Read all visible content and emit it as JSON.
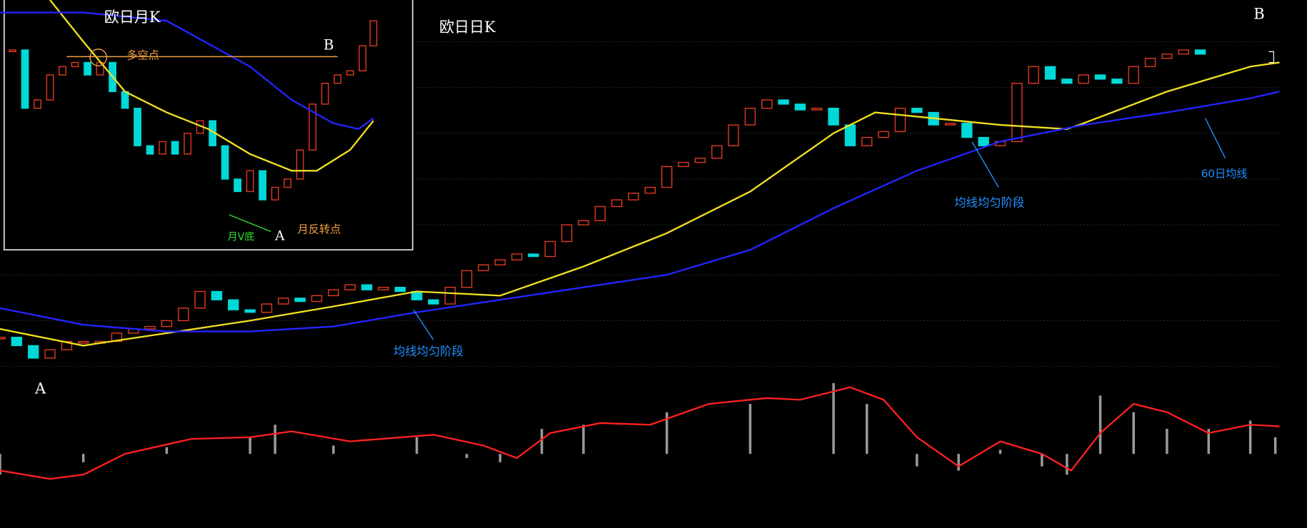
{
  "chart_data": [
    {
      "type": "candlestick",
      "title": "欧日日K",
      "up_color": "#e03a20",
      "down_color": "#00d8d8",
      "xlim": [
        0,
        78.4
      ],
      "ylim": [
        0,
        460
      ],
      "closes": [
        55,
        45,
        30,
        40,
        50,
        50,
        50,
        60,
        65,
        68,
        75,
        90,
        110,
        100,
        88,
        85,
        95,
        102,
        98,
        105,
        112,
        118,
        112,
        115,
        110,
        100,
        95,
        115,
        135,
        142,
        148,
        155,
        152,
        170,
        190,
        195,
        212,
        220,
        228,
        235,
        260,
        265,
        270,
        285,
        310,
        330,
        340,
        335,
        328,
        330,
        310,
        285,
        295,
        302,
        330,
        325,
        310,
        312,
        295,
        285,
        290,
        360,
        380,
        365,
        360,
        370,
        365,
        360,
        380,
        390,
        395,
        400,
        395
      ],
      "lines": [
        {
          "color": "#f0e020",
          "x": [
            0,
            5,
            10,
            15,
            20,
            25,
            30,
            35,
            40,
            45,
            50,
            52.5,
            55,
            60,
            64,
            65,
            70,
            75,
            76.75
          ],
          "values": [
            65,
            45,
            60,
            75,
            92,
            110,
            105,
            140,
            180,
            230,
            300,
            325,
            320,
            310,
            305,
            312,
            350,
            380,
            385
          ]
        },
        {
          "color": "#2424ff",
          "x": [
            0,
            5,
            10,
            15,
            20,
            25,
            30,
            35,
            40,
            45,
            50,
            55,
            60,
            65,
            70,
            75,
            76.75
          ],
          "values": [
            90,
            70,
            62,
            62,
            68,
            85,
            100,
            115,
            130,
            160,
            210,
            255,
            290,
            310,
            325,
            342,
            350
          ]
        }
      ]
    },
    {
      "type": "macd",
      "xlim": [
        0,
        78.4
      ],
      "ylim": [
        -89,
        85
      ],
      "histogram": {
        "color": "#9a9a9a",
        "x": [
          0,
          5,
          10,
          15,
          16.5,
          20,
          25,
          28,
          30,
          32.5,
          35,
          40,
          45,
          50,
          52,
          55,
          57.5,
          60,
          62.5,
          64,
          66,
          68,
          70,
          72.5,
          75,
          76.5
        ],
        "values": [
          -25,
          -10,
          8,
          20,
          35,
          10,
          20,
          -5,
          -10,
          30,
          35,
          50,
          60,
          85,
          60,
          -15,
          -20,
          5,
          -15,
          -25,
          70,
          50,
          30,
          30,
          40,
          20
        ]
      },
      "line": {
        "color": "#ff2020",
        "x": [
          0,
          3,
          5,
          7.5,
          11.5,
          15,
          17.5,
          21,
          26,
          29,
          31,
          33,
          36,
          39,
          42.5,
          46,
          48,
          50,
          51,
          53,
          55,
          57.5,
          60,
          62.5,
          64.25,
          66,
          68,
          70,
          72.5,
          75,
          76.75
        ],
        "values": [
          -20,
          -30,
          -25,
          0,
          18,
          20,
          27,
          15,
          23,
          10,
          -5,
          25,
          37,
          35,
          60,
          67,
          65,
          75,
          80,
          65,
          20,
          -15,
          15,
          0,
          -20,
          25,
          60,
          50,
          25,
          35,
          33
        ]
      }
    },
    {
      "type": "candlestick",
      "title": "欧日月K",
      "up_color": "#e03a20",
      "down_color": "#00d8d8",
      "xlim": [
        0,
        495
      ],
      "ylim": [
        0,
        300
      ],
      "x": [
        15,
        30,
        45,
        60,
        75,
        90,
        105,
        120,
        135,
        150,
        165,
        180,
        195,
        210,
        225,
        240,
        255,
        270,
        285,
        300,
        315,
        330,
        345,
        360,
        375,
        390,
        405,
        420,
        435,
        448
      ],
      "closes": [
        240,
        170,
        180,
        210,
        220,
        225,
        210,
        225,
        190,
        170,
        125,
        115,
        130,
        115,
        140,
        155,
        125,
        85,
        70,
        95,
        60,
        75,
        85,
        120,
        175,
        200,
        210,
        215,
        245,
        275
      ],
      "lines": [
        {
          "color": "#f0e020",
          "x": [
            60,
            100,
            150,
            200,
            250,
            300,
            350,
            380,
            420,
            448
          ],
          "values": [
            300,
            250,
            190,
            165,
            145,
            115,
            95,
            95,
            120,
            155
          ]
        },
        {
          "color": "#2424ff",
          "x": [
            0,
            100,
            200,
            300,
            350,
            400,
            430,
            448
          ],
          "values": [
            285,
            285,
            275,
            220,
            180,
            152,
            145,
            158
          ]
        }
      ]
    }
  ],
  "annotations": {
    "daily_b": "B",
    "daily_a": "A",
    "stage_1": "均线均匀阶段",
    "stage_2": "均线均匀阶段",
    "ma60": "60日均线",
    "monthly_b": "B",
    "bull_bear": "多空点",
    "monthly_a": "A",
    "v_bottom": "月V底",
    "reversal": "月反转点"
  }
}
